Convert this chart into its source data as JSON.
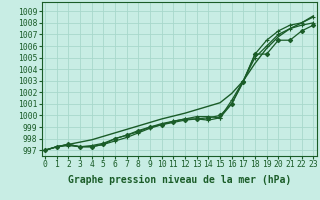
{
  "background_color": "#c8ede4",
  "grid_color": "#a8d8cc",
  "line_color": "#1a5c28",
  "xlabel": "Graphe pression niveau de la mer (hPa)",
  "xlabel_fontsize": 7,
  "tick_fontsize": 5.8,
  "ylim": [
    996.5,
    1009.8
  ],
  "xlim": [
    -0.3,
    23.3
  ],
  "yticks": [
    997,
    998,
    999,
    1000,
    1001,
    1002,
    1003,
    1004,
    1005,
    1006,
    1007,
    1008,
    1009
  ],
  "xticks": [
    0,
    1,
    2,
    3,
    4,
    5,
    6,
    7,
    8,
    9,
    10,
    11,
    12,
    13,
    14,
    15,
    16,
    17,
    18,
    19,
    20,
    21,
    22,
    23
  ],
  "series": [
    {
      "y": [
        997.0,
        997.3,
        997.5,
        997.7,
        997.9,
        998.2,
        998.5,
        998.8,
        999.1,
        999.4,
        999.7,
        999.95,
        1000.2,
        1000.5,
        1000.8,
        1001.1,
        1001.9,
        1003.0,
        1004.5,
        1005.8,
        1006.8,
        1007.5,
        1008.0,
        1008.6
      ],
      "marker": null,
      "lw": 1.0
    },
    {
      "y": [
        997.0,
        997.3,
        997.5,
        997.3,
        997.3,
        997.5,
        997.8,
        998.1,
        998.5,
        998.9,
        999.2,
        999.5,
        999.7,
        999.9,
        999.9,
        999.8,
        1001.0,
        1003.0,
        1005.3,
        1006.5,
        1007.3,
        1007.8,
        1008.0,
        1008.5
      ],
      "marker": "+",
      "ms": 3.0,
      "lw": 0.9
    },
    {
      "y": [
        997.0,
        997.3,
        997.4,
        997.3,
        997.4,
        997.6,
        998.0,
        998.3,
        998.6,
        999.0,
        999.3,
        999.5,
        999.7,
        999.7,
        999.6,
        999.8,
        1001.3,
        1003.0,
        1005.0,
        1006.0,
        1007.0,
        1007.5,
        1007.8,
        1008.0
      ],
      "marker": "+",
      "ms": 3.0,
      "lw": 0.9
    },
    {
      "y": [
        997.0,
        997.3,
        997.5,
        997.3,
        997.3,
        997.5,
        998.0,
        998.3,
        998.7,
        999.0,
        999.2,
        999.4,
        999.6,
        999.7,
        999.8,
        1000.0,
        1001.0,
        1002.9,
        1005.3,
        1005.3,
        1006.5,
        1006.5,
        1007.3,
        1007.8
      ],
      "marker": "D",
      "ms": 2.2,
      "lw": 0.9
    }
  ]
}
